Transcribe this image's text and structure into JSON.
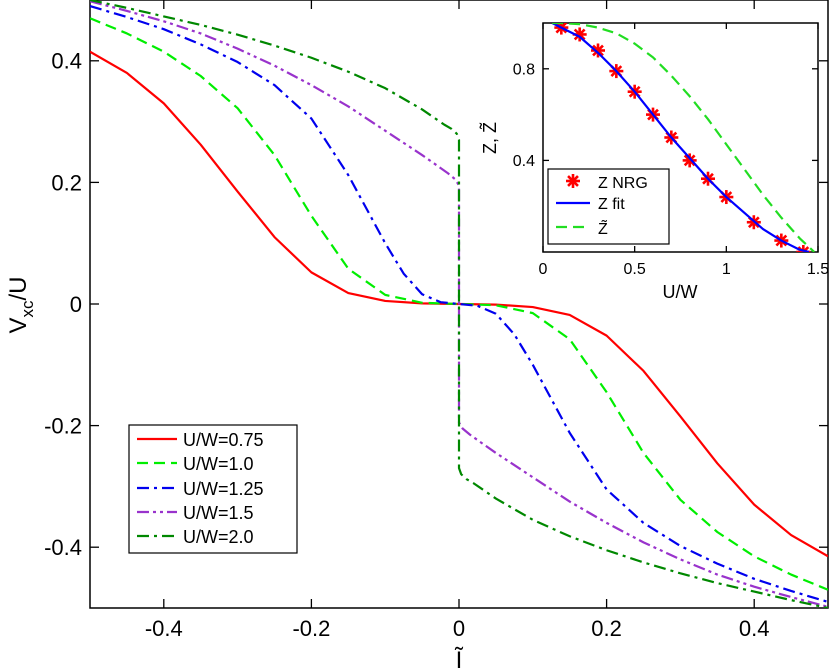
{
  "chart_data": [
    {
      "type": "line",
      "xlabel": "Ĩ",
      "ylabel_main": "V",
      "ylabel_sub": "xc",
      "ylabel_tail": "/U",
      "xlim": [
        -0.5,
        0.5
      ],
      "ylim": [
        -0.5,
        0.5
      ],
      "xticks": [
        -0.4,
        -0.2,
        0,
        0.2,
        0.4
      ],
      "xtick_labels": [
        "-0.4",
        "-0.2",
        "0",
        "0.2",
        "0.4"
      ],
      "yticks": [
        -0.4,
        -0.2,
        0,
        0.2,
        0.4
      ],
      "ytick_labels": [
        "-0.4",
        "-0.2",
        "0",
        "0.2",
        "0.4"
      ],
      "legend_position": "lower-left",
      "series": [
        {
          "name": "U/W=0.75",
          "color": "#ff0000",
          "dash": "solid",
          "x": [
            -0.5,
            -0.45,
            -0.4,
            -0.35,
            -0.3,
            -0.25,
            -0.2,
            -0.15,
            -0.1,
            -0.05,
            0
          ],
          "y": [
            0.415,
            0.38,
            0.33,
            0.262,
            0.185,
            0.11,
            0.052,
            0.018,
            0.005,
            0.001,
            0
          ]
        },
        {
          "name": "U/W=1.0",
          "color": "#00ee00",
          "dash": "dashed",
          "x": [
            -0.5,
            -0.45,
            -0.4,
            -0.35,
            -0.3,
            -0.25,
            -0.2,
            -0.15,
            -0.1,
            -0.05,
            0
          ],
          "y": [
            0.47,
            0.445,
            0.415,
            0.375,
            0.322,
            0.245,
            0.145,
            0.058,
            0.015,
            0.002,
            0
          ]
        },
        {
          "name": "U/W=1.25",
          "color": "#0000ee",
          "dash": "dashdot",
          "x": [
            -0.5,
            -0.45,
            -0.4,
            -0.35,
            -0.3,
            -0.25,
            -0.2,
            -0.15,
            -0.1,
            -0.075,
            -0.05,
            -0.025,
            0
          ],
          "y": [
            0.49,
            0.472,
            0.452,
            0.427,
            0.398,
            0.36,
            0.305,
            0.212,
            0.1,
            0.05,
            0.016,
            0.003,
            0
          ]
        },
        {
          "name": "U/W=1.5",
          "color": "#9933cc",
          "dash": "dashdotdot",
          "x": [
            -0.5,
            -0.45,
            -0.4,
            -0.35,
            -0.3,
            -0.25,
            -0.2,
            -0.15,
            -0.1,
            -0.05,
            -0.03,
            -0.015,
            -0.005,
            0,
            0
          ],
          "y": [
            0.498,
            0.482,
            0.465,
            0.445,
            0.42,
            0.392,
            0.36,
            0.325,
            0.285,
            0.245,
            0.228,
            0.215,
            0.205,
            0.195,
            0
          ]
        },
        {
          "name": "U/W=2.0",
          "color": "#008800",
          "dash": "dashdot",
          "x": [
            -0.5,
            -0.45,
            -0.4,
            -0.35,
            -0.3,
            -0.25,
            -0.2,
            -0.15,
            -0.1,
            -0.05,
            -0.02,
            -0.01,
            -0.003,
            0,
            0
          ],
          "y": [
            0.5,
            0.487,
            0.473,
            0.459,
            0.443,
            0.425,
            0.405,
            0.382,
            0.355,
            0.32,
            0.295,
            0.288,
            0.28,
            0.27,
            0
          ]
        }
      ]
    },
    {
      "type": "line",
      "inset": true,
      "xlabel": "U/W",
      "ylabel": "Z, Z̃",
      "xlim": [
        0,
        1.5
      ],
      "ylim": [
        0,
        1
      ],
      "xticks": [
        0,
        0.5,
        1,
        1.5
      ],
      "xtick_labels": [
        "0",
        "0.5",
        "1",
        "1.5"
      ],
      "yticks": [
        0.4,
        0.8
      ],
      "ytick_labels": [
        "0.4",
        "0.8"
      ],
      "legend_position": "lower-left",
      "series": [
        {
          "name": "Z NRG",
          "color": "#ff0000",
          "marker": "asterisk",
          "x": [
            0.1,
            0.2,
            0.3,
            0.4,
            0.5,
            0.6,
            0.7,
            0.8,
            0.9,
            1.0,
            1.15,
            1.3,
            1.42
          ],
          "y": [
            0.98,
            0.95,
            0.88,
            0.79,
            0.7,
            0.6,
            0.5,
            0.4,
            0.32,
            0.24,
            0.13,
            0.05,
            0.0
          ]
        },
        {
          "name": "Z fit",
          "color": "#0000ff",
          "dash": "solid",
          "x": [
            0.05,
            0.1,
            0.2,
            0.3,
            0.4,
            0.5,
            0.6,
            0.7,
            0.8,
            0.9,
            1.0,
            1.1,
            1.2,
            1.3,
            1.4,
            1.45
          ],
          "y": [
            1.0,
            0.98,
            0.94,
            0.87,
            0.79,
            0.7,
            0.6,
            0.5,
            0.41,
            0.32,
            0.24,
            0.17,
            0.1,
            0.05,
            0.01,
            0
          ]
        },
        {
          "name": "Z̃",
          "color": "#22dd22",
          "dash": "dashed",
          "x": [
            0.05,
            0.1,
            0.2,
            0.3,
            0.4,
            0.5,
            0.6,
            0.7,
            0.8,
            0.9,
            1.0,
            1.1,
            1.2,
            1.3,
            1.4,
            1.48
          ],
          "y": [
            1.0,
            1.0,
            0.995,
            0.98,
            0.955,
            0.91,
            0.85,
            0.77,
            0.68,
            0.58,
            0.47,
            0.36,
            0.25,
            0.15,
            0.06,
            0
          ]
        }
      ]
    }
  ]
}
